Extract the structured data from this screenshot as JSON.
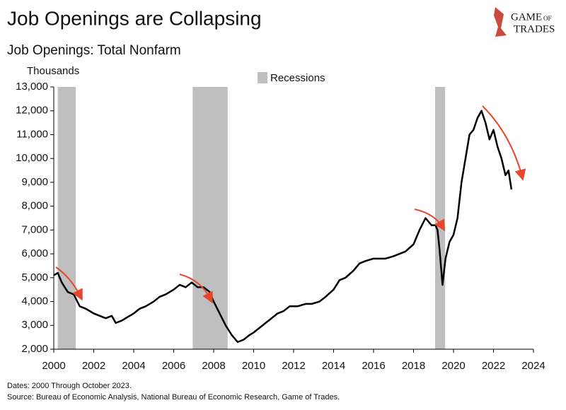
{
  "brand": {
    "line1": "GAME",
    "line2": "OF",
    "line3": "TRADES"
  },
  "chart_data": {
    "type": "line",
    "title": "Job Openings are Collapsing",
    "subtitle": "Job Openings: Total Nonfarm",
    "y_label": "Thousands",
    "notes": [
      "Dates: 2000 Through October 2023.",
      "Source: Bureau of Economic Analysis, National Bureau of Economic Research, Game of Trades."
    ],
    "recessions": {
      "name": "Recessions",
      "color": "#bfbfbf",
      "periods": [
        [
          2000.2,
          2001.1
        ],
        [
          2006.95,
          2008.7
        ],
        [
          2019.08,
          2019.58
        ]
      ]
    },
    "x": [
      2000.0,
      2000.2,
      2000.4,
      2000.7,
      2001.0,
      2001.3,
      2001.6,
      2002.0,
      2002.3,
      2002.6,
      2002.9,
      2003.1,
      2003.4,
      2003.7,
      2004.0,
      2004.3,
      2004.6,
      2005.0,
      2005.3,
      2005.6,
      2006.0,
      2006.3,
      2006.6,
      2006.9,
      2007.2,
      2007.5,
      2007.8,
      2008.0,
      2008.3,
      2008.6,
      2008.9,
      2009.2,
      2009.5,
      2009.8,
      2010.0,
      2010.3,
      2010.6,
      2010.9,
      2011.2,
      2011.5,
      2011.8,
      2012.2,
      2012.6,
      2012.9,
      2013.3,
      2013.6,
      2014.0,
      2014.3,
      2014.6,
      2015.0,
      2015.3,
      2015.6,
      2016.0,
      2016.3,
      2016.6,
      2017.0,
      2017.3,
      2017.6,
      2018.0,
      2018.3,
      2018.6,
      2018.9,
      2019.1,
      2019.2,
      2019.3,
      2019.45,
      2019.6,
      2019.8,
      2020.0,
      2020.2,
      2020.4,
      2020.6,
      2020.8,
      2021.0,
      2021.2,
      2021.4,
      2021.6,
      2021.8,
      2022.0,
      2022.2,
      2022.4,
      2022.6,
      2022.75,
      2022.9
    ],
    "series": [
      {
        "name": "Job Openings",
        "color": "#000000",
        "values": [
          5100,
          5200,
          4800,
          4400,
          4300,
          3800,
          3700,
          3500,
          3400,
          3300,
          3400,
          3100,
          3200,
          3350,
          3500,
          3700,
          3800,
          4000,
          4200,
          4300,
          4500,
          4700,
          4600,
          4800,
          4600,
          4600,
          4400,
          4000,
          3500,
          3000,
          2600,
          2300,
          2400,
          2600,
          2700,
          2900,
          3100,
          3300,
          3500,
          3600,
          3800,
          3800,
          3900,
          3900,
          4000,
          4200,
          4500,
          4900,
          5000,
          5300,
          5600,
          5700,
          5800,
          5800,
          5800,
          5900,
          6000,
          6100,
          6400,
          7000,
          7500,
          7200,
          7200,
          7000,
          6200,
          4700,
          5800,
          6500,
          6800,
          7500,
          9000,
          10000,
          11000,
          11200,
          11700,
          12000,
          11500,
          10800,
          11200,
          10500,
          10000,
          9300,
          9500,
          8700
        ]
      }
    ],
    "xlim": [
      2000,
      2024
    ],
    "xticks": [
      2000,
      2002,
      2004,
      2006,
      2008,
      2010,
      2012,
      2014,
      2016,
      2018,
      2020,
      2022,
      2024
    ],
    "ylim": [
      2000,
      13000
    ],
    "yticks": [
      {
        "value": 2000,
        "label": "2,000"
      },
      {
        "value": 3000,
        "label": "3,000"
      },
      {
        "value": 4000,
        "label": "4,000"
      },
      {
        "value": 5000,
        "label": "5,000"
      },
      {
        "value": 6000,
        "label": "6,000"
      },
      {
        "value": 7000,
        "label": "7,000"
      },
      {
        "value": 8000,
        "label": "8,000"
      },
      {
        "value": 9000,
        "label": "9,000"
      },
      {
        "value": 10000,
        "label": "10,000"
      },
      {
        "value": 11000,
        "label": "11,000"
      },
      {
        "value": 12000,
        "label": "12,000"
      },
      {
        "value": 13000,
        "label": "13,000"
      }
    ]
  }
}
